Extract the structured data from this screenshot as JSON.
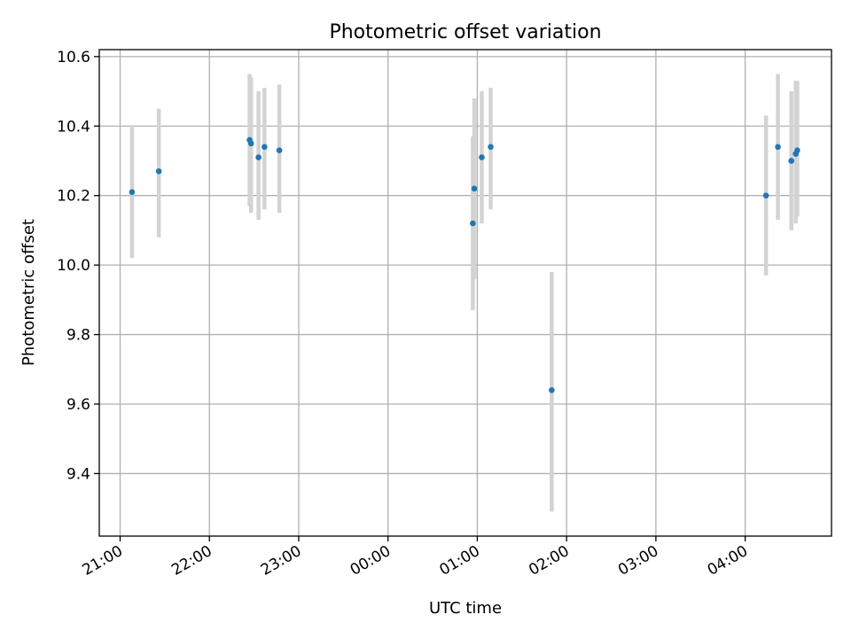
{
  "chart_data": {
    "type": "scatter",
    "title": "Photometric offset variation",
    "xlabel": "UTC time",
    "ylabel": "Photometric offset",
    "x_axis_kind": "time",
    "xlim": [
      "20:46",
      "04:58"
    ],
    "ylim": [
      9.22,
      10.62
    ],
    "x_ticks": [
      "21:00",
      "22:00",
      "23:00",
      "00:00",
      "01:00",
      "02:00",
      "03:00",
      "04:00"
    ],
    "y_ticks": [
      9.4,
      9.6,
      9.8,
      10.0,
      10.2,
      10.4,
      10.6
    ],
    "y_tick_labels": [
      "9.4",
      "9.6",
      "9.8",
      "10.0",
      "10.2",
      "10.4",
      "10.6"
    ],
    "grid": true,
    "colors": {
      "points": "#1f77b4",
      "error_bars": "#d3d3d3",
      "grid": "#b0b0b0"
    },
    "points": [
      {
        "x": "21:08",
        "y": 10.21,
        "low": 10.02,
        "high": 10.4
      },
      {
        "x": "21:26",
        "y": 10.27,
        "low": 10.08,
        "high": 10.45
      },
      {
        "x": "22:27",
        "y": 10.36,
        "low": 10.17,
        "high": 10.55
      },
      {
        "x": "22:28",
        "y": 10.35,
        "low": 10.15,
        "high": 10.54
      },
      {
        "x": "22:33",
        "y": 10.31,
        "low": 10.13,
        "high": 10.5
      },
      {
        "x": "22:37",
        "y": 10.34,
        "low": 10.16,
        "high": 10.51
      },
      {
        "x": "22:47",
        "y": 10.33,
        "low": 10.15,
        "high": 10.52
      },
      {
        "x": "00:57",
        "y": 10.12,
        "low": 9.87,
        "high": 10.37
      },
      {
        "x": "00:58",
        "y": 10.22,
        "low": 9.96,
        "high": 10.48
      },
      {
        "x": "01:03",
        "y": 10.31,
        "low": 10.12,
        "high": 10.5
      },
      {
        "x": "01:09",
        "y": 10.34,
        "low": 10.16,
        "high": 10.51
      },
      {
        "x": "01:50",
        "y": 9.64,
        "low": 9.29,
        "high": 9.98
      },
      {
        "x": "04:14",
        "y": 10.2,
        "low": 9.97,
        "high": 10.43
      },
      {
        "x": "04:22",
        "y": 10.34,
        "low": 10.13,
        "high": 10.55
      },
      {
        "x": "04:31",
        "y": 10.3,
        "low": 10.1,
        "high": 10.5
      },
      {
        "x": "04:34",
        "y": 10.32,
        "low": 10.12,
        "high": 10.53
      },
      {
        "x": "04:35",
        "y": 10.33,
        "low": 10.14,
        "high": 10.53
      }
    ]
  }
}
